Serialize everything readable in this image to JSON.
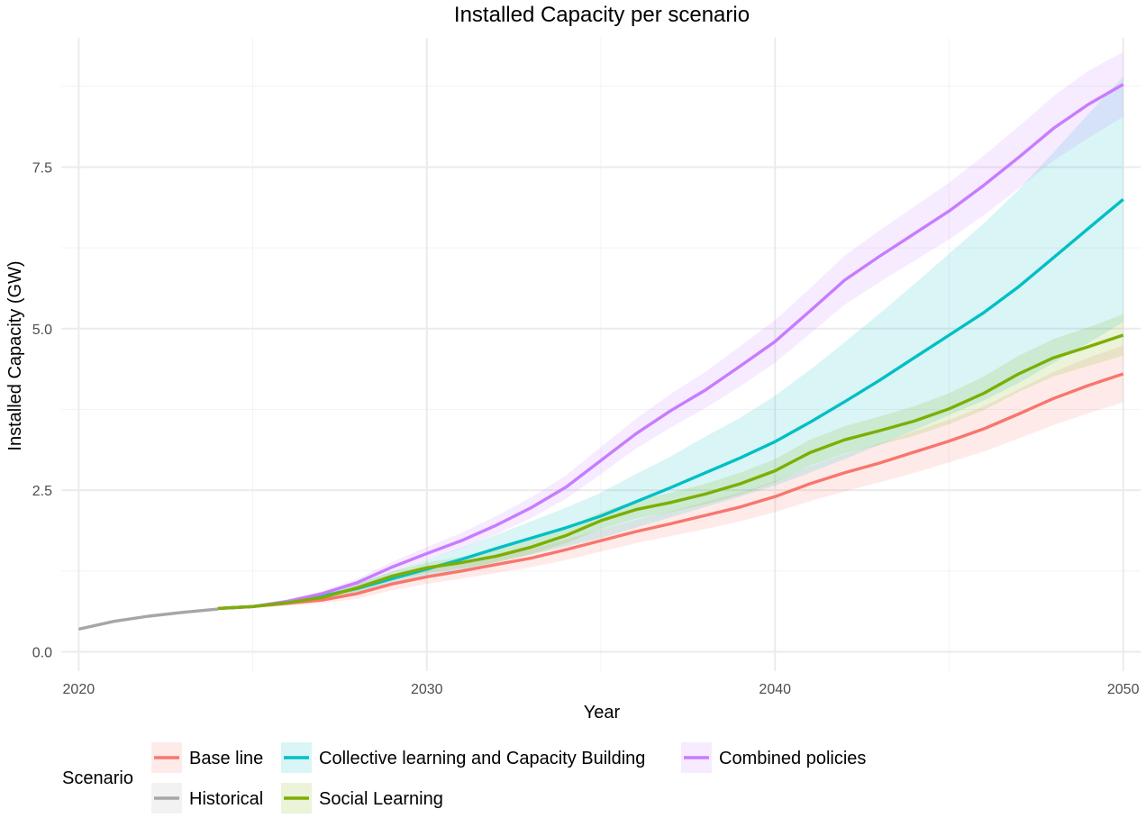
{
  "chart_data": {
    "type": "line",
    "title": "Installed Capacity per scenario",
    "xlabel": "Year",
    "ylabel": "Installed Capacity (GW)",
    "xlim": [
      2019.5,
      2050.5
    ],
    "ylim": [
      -0.3,
      9.5
    ],
    "x_ticks": [
      2020,
      2030,
      2040,
      2050
    ],
    "x_tick_labels": [
      "2020",
      "2030",
      "2040",
      "2050"
    ],
    "y_ticks": [
      0,
      2.5,
      5,
      7.5
    ],
    "y_tick_labels": [
      "0.0",
      "2.5",
      "5.0",
      "7.5"
    ],
    "grid": true,
    "legend": {
      "title": "Scenario",
      "position": "bottom",
      "entries": [
        {
          "label": "Base line",
          "color": "#F8766D"
        },
        {
          "label": "Collective learning and Capacity Building",
          "color": "#00BFC4"
        },
        {
          "label": "Combined policies",
          "color": "#C77CFF"
        },
        {
          "label": "Historical",
          "color": "#A6A6A6"
        },
        {
          "label": "Social Learning",
          "color": "#7CAE00"
        }
      ]
    },
    "series": [
      {
        "name": "Historical",
        "color": "#A6A6A6",
        "x": [
          2020,
          2021,
          2022,
          2023,
          2024
        ],
        "y": [
          0.35,
          0.47,
          0.55,
          0.61,
          0.66
        ]
      },
      {
        "name": "Base line",
        "color": "#F8766D",
        "x": [
          2024,
          2025,
          2026,
          2027,
          2028,
          2029,
          2030,
          2031,
          2032,
          2033,
          2034,
          2035,
          2036,
          2037,
          2038,
          2039,
          2040,
          2041,
          2042,
          2043,
          2044,
          2045,
          2046,
          2047,
          2048,
          2049,
          2050
        ],
        "y": [
          0.67,
          0.7,
          0.75,
          0.8,
          0.9,
          1.05,
          1.16,
          1.25,
          1.35,
          1.45,
          1.58,
          1.72,
          1.86,
          1.98,
          2.11,
          2.24,
          2.4,
          2.6,
          2.77,
          2.92,
          3.09,
          3.26,
          3.45,
          3.68,
          3.92,
          4.12,
          4.3
        ],
        "lower": [
          0.65,
          0.68,
          0.71,
          0.75,
          0.82,
          0.95,
          1.05,
          1.13,
          1.22,
          1.31,
          1.42,
          1.55,
          1.68,
          1.79,
          1.9,
          2.02,
          2.16,
          2.33,
          2.48,
          2.62,
          2.77,
          2.93,
          3.1,
          3.3,
          3.51,
          3.69,
          3.86
        ],
        "upper": [
          0.69,
          0.72,
          0.79,
          0.86,
          0.98,
          1.15,
          1.27,
          1.37,
          1.48,
          1.59,
          1.74,
          1.89,
          2.04,
          2.17,
          2.32,
          2.46,
          2.64,
          2.87,
          3.06,
          3.22,
          3.41,
          3.59,
          3.8,
          4.06,
          4.33,
          4.55,
          4.74
        ]
      },
      {
        "name": "Collective learning and Capacity Building",
        "color": "#00BFC4",
        "x": [
          2024,
          2025,
          2026,
          2027,
          2028,
          2029,
          2030,
          2031,
          2032,
          2033,
          2034,
          2035,
          2036,
          2037,
          2038,
          2039,
          2040,
          2041,
          2042,
          2043,
          2044,
          2045,
          2046,
          2047,
          2048,
          2049,
          2050
        ],
        "y": [
          0.67,
          0.7,
          0.77,
          0.86,
          0.98,
          1.13,
          1.28,
          1.43,
          1.6,
          1.76,
          1.92,
          2.1,
          2.32,
          2.54,
          2.77,
          3.0,
          3.25,
          3.55,
          3.87,
          4.2,
          4.55,
          4.9,
          5.25,
          5.65,
          6.1,
          6.55,
          7.0
        ],
        "lower": [
          0.65,
          0.68,
          0.73,
          0.8,
          0.9,
          1.02,
          1.14,
          1.26,
          1.39,
          1.51,
          1.63,
          1.76,
          1.92,
          2.08,
          2.24,
          2.4,
          2.57,
          2.77,
          2.98,
          3.2,
          3.43,
          3.66,
          3.89,
          4.16,
          4.47,
          4.78,
          5.1
        ],
        "upper": [
          0.69,
          0.72,
          0.81,
          0.92,
          1.06,
          1.24,
          1.42,
          1.61,
          1.81,
          2.02,
          2.23,
          2.46,
          2.75,
          3.02,
          3.33,
          3.62,
          3.96,
          4.36,
          4.79,
          5.23,
          5.69,
          6.16,
          6.63,
          7.15,
          7.73,
          8.32,
          8.9
        ]
      },
      {
        "name": "Combined policies",
        "color": "#C77CFF",
        "x": [
          2024,
          2025,
          2026,
          2027,
          2028,
          2029,
          2030,
          2031,
          2032,
          2033,
          2034,
          2035,
          2036,
          2037,
          2038,
          2039,
          2040,
          2041,
          2042,
          2043,
          2044,
          2045,
          2046,
          2047,
          2048,
          2049,
          2050
        ],
        "y": [
          0.67,
          0.7,
          0.78,
          0.9,
          1.07,
          1.31,
          1.52,
          1.72,
          1.96,
          2.23,
          2.55,
          2.96,
          3.37,
          3.73,
          4.05,
          4.42,
          4.8,
          5.27,
          5.75,
          6.12,
          6.47,
          6.82,
          7.22,
          7.65,
          8.1,
          8.47,
          8.78
        ],
        "lower": [
          0.65,
          0.68,
          0.75,
          0.86,
          1.01,
          1.23,
          1.42,
          1.6,
          1.82,
          2.07,
          2.37,
          2.75,
          3.14,
          3.47,
          3.77,
          4.11,
          4.47,
          4.92,
          5.37,
          5.72,
          6.05,
          6.38,
          6.76,
          7.17,
          7.6,
          7.95,
          8.28
        ],
        "upper": [
          0.69,
          0.72,
          0.81,
          0.94,
          1.13,
          1.39,
          1.62,
          1.84,
          2.1,
          2.39,
          2.73,
          3.17,
          3.6,
          3.99,
          4.33,
          4.73,
          5.13,
          5.62,
          6.13,
          6.52,
          6.89,
          7.26,
          7.68,
          8.13,
          8.6,
          8.99,
          9.28
        ]
      },
      {
        "name": "Social Learning",
        "color": "#7CAE00",
        "x": [
          2024,
          2025,
          2026,
          2027,
          2028,
          2029,
          2030,
          2031,
          2032,
          2033,
          2034,
          2035,
          2036,
          2037,
          2038,
          2039,
          2040,
          2041,
          2042,
          2043,
          2044,
          2045,
          2046,
          2047,
          2048,
          2049,
          2050
        ],
        "y": [
          0.67,
          0.7,
          0.76,
          0.84,
          0.99,
          1.17,
          1.3,
          1.38,
          1.48,
          1.62,
          1.8,
          2.03,
          2.2,
          2.31,
          2.44,
          2.6,
          2.8,
          3.08,
          3.28,
          3.42,
          3.57,
          3.76,
          4.0,
          4.3,
          4.55,
          4.72,
          4.9
        ],
        "lower": [
          0.65,
          0.68,
          0.73,
          0.8,
          0.93,
          1.1,
          1.22,
          1.29,
          1.38,
          1.51,
          1.68,
          1.9,
          2.06,
          2.16,
          2.28,
          2.43,
          2.62,
          2.88,
          3.07,
          3.2,
          3.34,
          3.52,
          3.74,
          4.02,
          4.26,
          4.42,
          4.58
        ],
        "upper": [
          0.69,
          0.72,
          0.79,
          0.88,
          1.05,
          1.24,
          1.38,
          1.47,
          1.58,
          1.73,
          1.92,
          2.16,
          2.34,
          2.46,
          2.6,
          2.77,
          2.98,
          3.28,
          3.49,
          3.64,
          3.8,
          4.0,
          4.26,
          4.58,
          4.84,
          5.02,
          5.22
        ]
      }
    ]
  }
}
